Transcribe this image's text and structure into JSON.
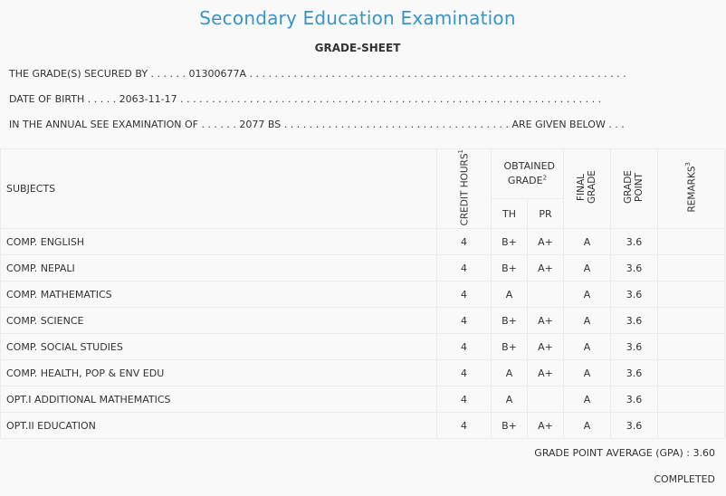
{
  "header": {
    "title": "Secondary Education Examination",
    "subtitle": "GRADE-SHEET"
  },
  "info": {
    "secured_by": "THE GRADE(S) SECURED BY . . . . . . 01300677A . . . . . . . . . . . . . . . . . . . . . . . . . . . . . . . . . . . . . . . . . . . . . . . . . . . . . . . . . . . .",
    "dob": "DATE OF BIRTH . . . . . 2063-11-17 . . . . . . . . . . . . . . . . . . . . . . . . . . . . . . . . . . . . . . . . . . . . . . . . . . . . . . . . . . . . . . . . . . .",
    "exam": "IN THE ANNUAL SEE EXAMINATION OF . . . . . . 2077 BS . . . . . . . . . . . . . . . . . . . . . . . . . . . . . . . . . . . . ARE GIVEN BELOW . . ."
  },
  "table": {
    "headers": {
      "subjects": "SUBJECTS",
      "credit_hours": "CREDIT HOURS",
      "credit_sup": "1",
      "obtained_grade": "OBTAINED GRADE",
      "obtained_sup": "2",
      "th": "TH",
      "pr": "PR",
      "final_grade": "FINAL GRADE",
      "grade_point": "GRADE POINT",
      "remarks": "REMARKS",
      "remarks_sup": "3"
    },
    "rows": [
      {
        "subject": "COMP. ENGLISH",
        "credit": "4",
        "th": "B+",
        "pr": "A+",
        "final": "A",
        "gp": "3.6",
        "remarks": ""
      },
      {
        "subject": "COMP. NEPALI",
        "credit": "4",
        "th": "B+",
        "pr": "A+",
        "final": "A",
        "gp": "3.6",
        "remarks": ""
      },
      {
        "subject": "COMP. MATHEMATICS",
        "credit": "4",
        "th": "A",
        "pr": "",
        "final": "A",
        "gp": "3.6",
        "remarks": ""
      },
      {
        "subject": "COMP. SCIENCE",
        "credit": "4",
        "th": "B+",
        "pr": "A+",
        "final": "A",
        "gp": "3.6",
        "remarks": ""
      },
      {
        "subject": "COMP. SOCIAL STUDIES",
        "credit": "4",
        "th": "B+",
        "pr": "A+",
        "final": "A",
        "gp": "3.6",
        "remarks": ""
      },
      {
        "subject": "COMP. HEALTH, POP & ENV EDU",
        "credit": "4",
        "th": "A",
        "pr": "A+",
        "final": "A",
        "gp": "3.6",
        "remarks": ""
      },
      {
        "subject": "OPT.I ADDITIONAL MATHEMATICS",
        "credit": "4",
        "th": "A",
        "pr": "",
        "final": "A",
        "gp": "3.6",
        "remarks": ""
      },
      {
        "subject": "OPT.II EDUCATION",
        "credit": "4",
        "th": "B+",
        "pr": "A+",
        "final": "A",
        "gp": "3.6",
        "remarks": ""
      }
    ]
  },
  "footer": {
    "gpa": "GRADE POINT AVERAGE (GPA) : 3.60",
    "status": "COMPLETED"
  }
}
